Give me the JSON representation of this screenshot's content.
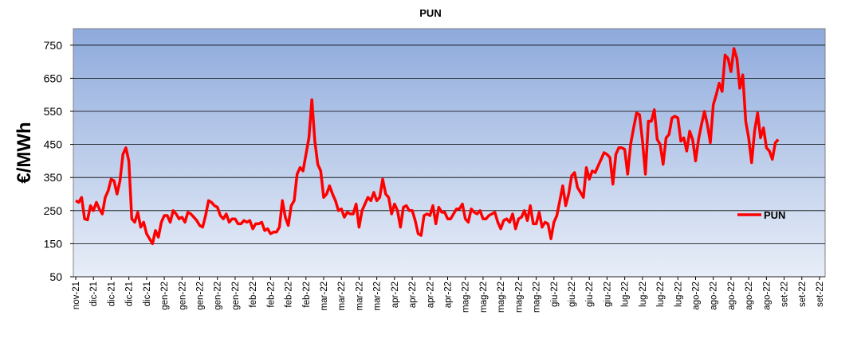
{
  "chart_data": {
    "type": "line",
    "title": "PUN",
    "y_label": "€/MWh",
    "ylim": [
      50,
      800
    ],
    "yticks": [
      50,
      150,
      250,
      350,
      450,
      550,
      650,
      750
    ],
    "grid": true,
    "legend": "right",
    "categories": [
      "nov-21",
      null,
      null,
      null,
      null,
      null,
      "dic-21",
      null,
      null,
      null,
      null,
      null,
      "dic-21",
      null,
      null,
      null,
      null,
      null,
      "dic-21",
      null,
      null,
      null,
      null,
      null,
      "dic-21",
      null,
      null,
      null,
      null,
      null,
      "gen-22",
      null,
      null,
      null,
      null,
      null,
      "gen-22",
      null,
      null,
      null,
      null,
      null,
      "gen-22",
      null,
      null,
      null,
      null,
      null,
      "gen-22",
      null,
      null,
      null,
      null,
      null,
      "gen-22",
      null,
      null,
      null,
      null,
      null,
      "feb-22",
      null,
      null,
      null,
      null,
      null,
      "feb-22",
      null,
      null,
      null,
      null,
      null,
      "feb-22",
      null,
      null,
      null,
      null,
      null,
      "feb-22",
      null,
      null,
      null,
      null,
      null,
      "mar-22",
      null,
      null,
      null,
      null,
      null,
      "mar-22",
      null,
      null,
      null,
      null,
      null,
      "mar-22",
      null,
      null,
      null,
      null,
      null,
      "mar-22",
      null,
      null,
      null,
      null,
      null,
      "apr-22",
      null,
      null,
      null,
      null,
      null,
      "apr-22",
      null,
      null,
      null,
      null,
      null,
      "apr-22",
      null,
      null,
      null,
      null,
      null,
      "apr-22",
      null,
      null,
      null,
      null,
      null,
      "mag-22",
      null,
      null,
      null,
      null,
      null,
      "mag-22",
      null,
      null,
      null,
      null,
      null,
      "mag-22",
      null,
      null,
      null,
      null,
      null,
      "mag-22",
      null,
      null,
      null,
      null,
      null,
      "mag-22",
      null,
      null,
      null,
      null,
      null,
      "giu-22",
      null,
      null,
      null,
      null,
      null,
      "giu-22",
      null,
      null,
      null,
      null,
      null,
      "giu-22",
      null,
      null,
      null,
      null,
      null,
      "giu-22",
      null,
      null,
      null,
      null,
      null,
      "lug-22",
      null,
      null,
      null,
      null,
      null,
      "lug-22",
      null,
      null,
      null,
      null,
      null,
      "lug-22",
      null,
      null,
      null,
      null,
      null,
      "lug-22",
      null,
      null,
      null,
      null,
      null,
      "ago-22",
      null,
      null,
      null,
      null,
      null,
      "ago-22",
      null,
      null,
      null,
      null,
      null,
      "ago-22",
      null,
      null,
      null,
      null,
      null,
      "ago-22",
      null,
      null,
      null,
      null,
      null,
      "ago-22",
      null,
      null,
      null,
      null,
      null,
      "set-22",
      null,
      null,
      null,
      null,
      null,
      "set-22",
      null,
      null,
      null,
      null,
      null,
      "set-22"
    ],
    "series": [
      {
        "name": "PUN",
        "color": "#ff0000",
        "values": [
          280,
          275,
          290,
          225,
          222,
          265,
          250,
          275,
          255,
          240,
          290,
          310,
          345,
          340,
          300,
          340,
          420,
          440,
          400,
          225,
          215,
          245,
          200,
          215,
          180,
          165,
          150,
          190,
          170,
          215,
          235,
          235,
          215,
          250,
          240,
          225,
          230,
          215,
          245,
          240,
          230,
          220,
          205,
          200,
          235,
          280,
          275,
          265,
          260,
          235,
          225,
          240,
          215,
          225,
          225,
          210,
          210,
          220,
          215,
          220,
          195,
          210,
          210,
          215,
          190,
          195,
          180,
          185,
          185,
          200,
          280,
          230,
          205,
          265,
          280,
          360,
          380,
          370,
          420,
          470,
          585,
          460,
          390,
          370,
          290,
          300,
          325,
          300,
          280,
          250,
          255,
          230,
          245,
          240,
          240,
          270,
          200,
          250,
          270,
          290,
          280,
          305,
          280,
          290,
          345,
          300,
          290,
          240,
          270,
          250,
          200,
          260,
          265,
          250,
          250,
          220,
          180,
          175,
          235,
          240,
          235,
          265,
          210,
          260,
          245,
          245,
          225,
          225,
          240,
          255,
          255,
          270,
          225,
          215,
          255,
          245,
          240,
          250,
          225,
          225,
          235,
          240,
          245,
          215,
          195,
          220,
          225,
          215,
          240,
          195,
          225,
          230,
          250,
          220,
          265,
          210,
          210,
          245,
          200,
          215,
          210,
          165,
          215,
          235,
          280,
          325,
          265,
          300,
          355,
          365,
          320,
          305,
          290,
          380,
          345,
          370,
          365,
          385,
          405,
          425,
          420,
          410,
          330,
          420,
          440,
          440,
          435,
          360,
          450,
          500,
          545,
          540,
          460,
          360,
          520,
          520,
          555,
          465,
          450,
          390,
          470,
          480,
          530,
          535,
          530,
          460,
          470,
          430,
          490,
          465,
          400,
          465,
          510,
          550,
          510,
          455,
          570,
          600,
          635,
          610,
          720,
          710,
          670,
          740,
          710,
          620,
          660,
          520,
          470,
          395,
          490,
          545,
          470,
          500,
          440,
          430,
          405,
          455,
          465,
          null,
          null,
          null,
          null,
          null,
          null,
          null,
          null,
          null,
          null,
          null,
          null,
          null,
          null
        ]
      }
    ]
  }
}
